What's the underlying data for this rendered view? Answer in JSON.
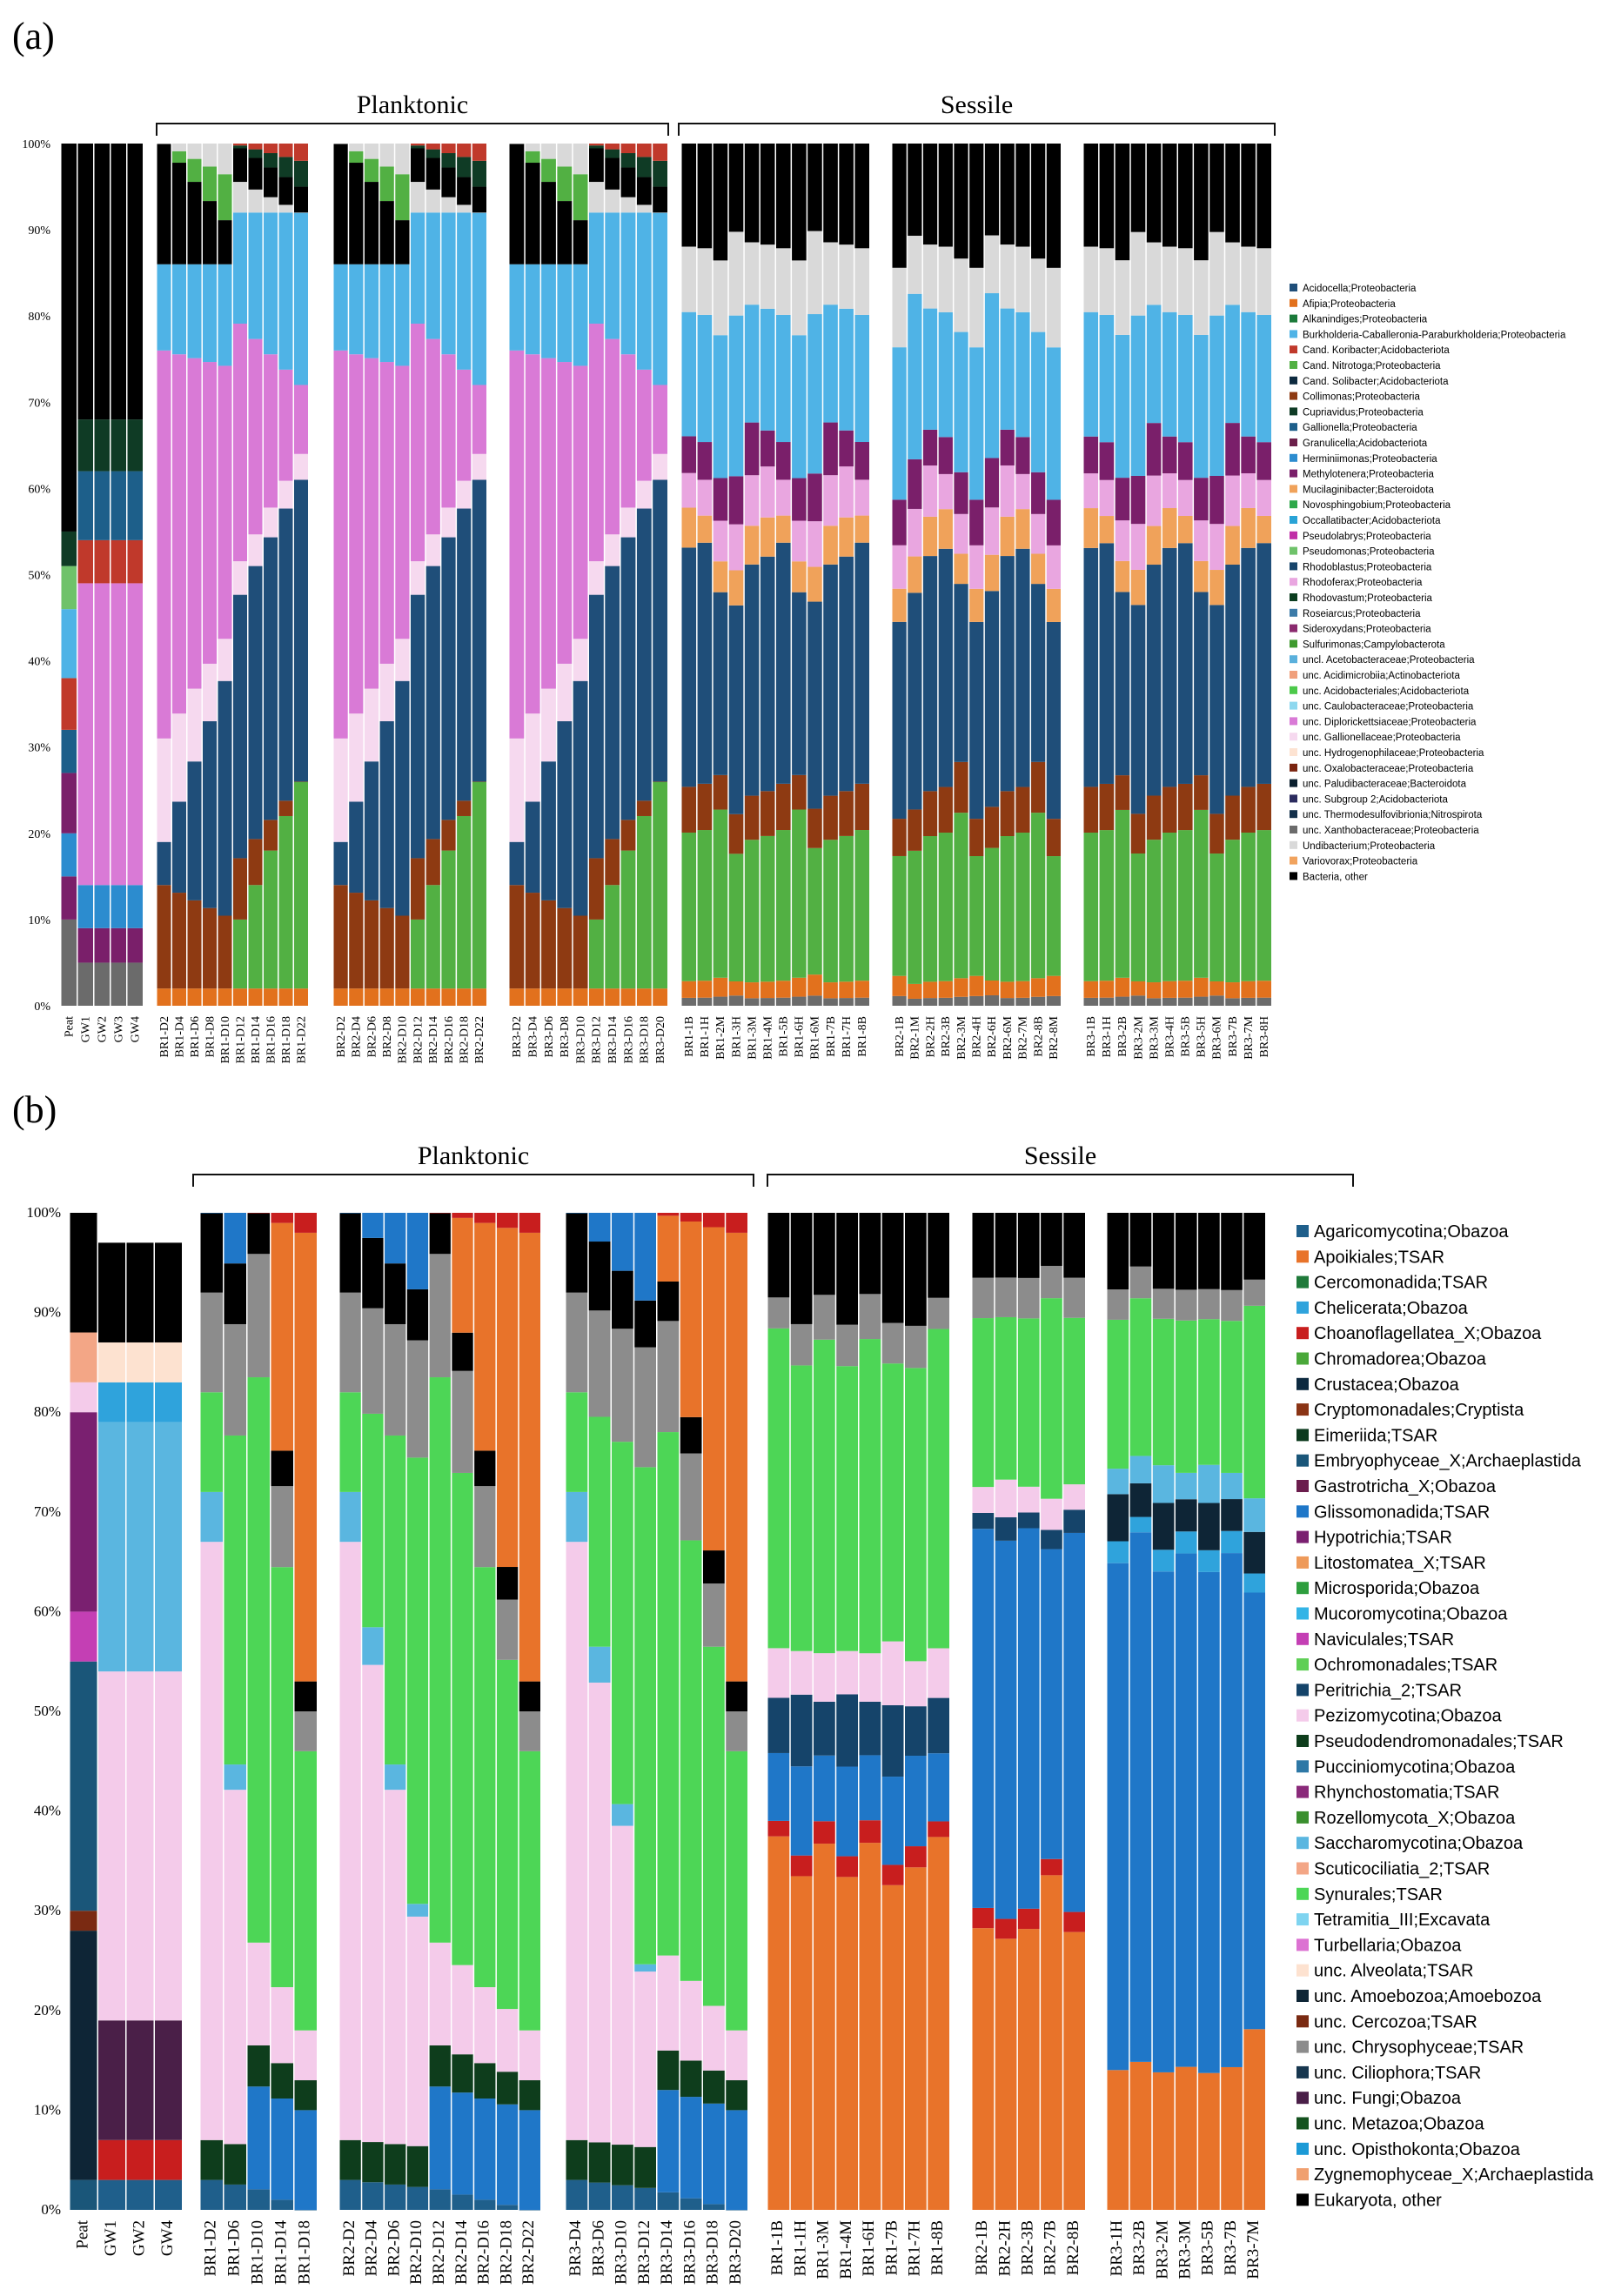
{
  "chart_data": [
    {
      "type": "bar",
      "stacked": true,
      "panel_label": "(a)",
      "group_labels": [
        "Planktonic",
        "Sessile"
      ],
      "ylim": [
        0,
        100
      ],
      "y_ticks": [
        "0%",
        "10%",
        "20%",
        "30%",
        "40%",
        "50%",
        "60%",
        "70%",
        "80%",
        "90%",
        "100%"
      ],
      "groups": [
        [
          "Peat",
          "GW1",
          "GW2",
          "GW3",
          "GW4"
        ],
        [
          "BR1-D2",
          "BR1-D4",
          "BR1-D6",
          "BR1-D8",
          "BR1-D10",
          "BR1-D12",
          "BR1-D14",
          "BR1-D16",
          "BR1-D18",
          "BR1-D22"
        ],
        [
          "BR2-D2",
          "BR2-D4",
          "BR2-D6",
          "BR2-D8",
          "BR2-D10",
          "BR2-D12",
          "BR2-D14",
          "BR2-D16",
          "BR2-D18",
          "BR2-D22"
        ],
        [
          "BR3-D2",
          "BR3-D4",
          "BR3-D6",
          "BR3-D8",
          "BR3-D10",
          "BR3-D12",
          "BR3-D14",
          "BR3-D16",
          "BR3-D18",
          "BR3-D20"
        ],
        [
          "BR1-1B",
          "BR1-1H",
          "BR1-2M",
          "BR1-3H",
          "BR1-3M",
          "BR1-4M",
          "BR1-5B",
          "BR1-6H",
          "BR1-6M",
          "BR1-7B",
          "BR1-7H",
          "BR1-8B"
        ],
        [
          "BR2-1B",
          "BR2-1M",
          "BR2-2H",
          "BR2-3B",
          "BR2-3M",
          "BR2-4H",
          "BR2-6H",
          "BR2-6M",
          "BR2-7M",
          "BR2-8B",
          "BR2-8M"
        ],
        [
          "BR3-1B",
          "BR3-1H",
          "BR3-2B",
          "BR3-2M",
          "BR3-3M",
          "BR3-4H",
          "BR3-5B",
          "BR3-5H",
          "BR3-6M",
          "BR3-7B",
          "BR3-7M",
          "BR3-8H"
        ]
      ],
      "legend": [
        {
          "name": "Acidocella;Proteobacteria",
          "color": "#1f4e79"
        },
        {
          "name": "Afipia;Proteobacteria",
          "color": "#e2711d"
        },
        {
          "name": "Alkanindiges;Proteobacteria",
          "color": "#1b7a3a"
        },
        {
          "name": "Burkholderia-Caballeronia-Paraburkholderia;Proteobacteria",
          "color": "#4fb3e6"
        },
        {
          "name": "Cand. Koribacter;Acidobacteriota",
          "color": "#c0392b"
        },
        {
          "name": "Cand. Nitrotoga;Proteobacteria",
          "color": "#52b043"
        },
        {
          "name": "Cand. Solibacter;Acidobacteriota",
          "color": "#0d2a3f"
        },
        {
          "name": "Collimonas;Proteobacteria",
          "color": "#8e3a12"
        },
        {
          "name": "Cupriavidus;Proteobacteria",
          "color": "#0f3b25"
        },
        {
          "name": "Gallionella;Proteobacteria",
          "color": "#1d5f8a"
        },
        {
          "name": "Granulicella;Acidobacteriota",
          "color": "#6b1f4a"
        },
        {
          "name": "Herminiimonas;Proteobacteria",
          "color": "#2c8ccf"
        },
        {
          "name": "Methylotenera;Proteobacteria",
          "color": "#7a1f6a"
        },
        {
          "name": "Mucilaginibacter;Bacteroidota",
          "color": "#f0a25a"
        },
        {
          "name": "Novosphingobium;Proteobacteria",
          "color": "#2ea84a"
        },
        {
          "name": "Occallatibacter;Acidobacteriota",
          "color": "#29a3d6"
        },
        {
          "name": "Pseudolabrys;Proteobacteria",
          "color": "#c02ea6"
        },
        {
          "name": "Pseudomonas;Proteobacteria",
          "color": "#6fc26a"
        },
        {
          "name": "Rhodoblastus;Proteobacteria",
          "color": "#17456b"
        },
        {
          "name": "Rhodoferax;Proteobacteria",
          "color": "#e9a6e0"
        },
        {
          "name": "Rhodovastum;Proteobacteria",
          "color": "#0b3d1f"
        },
        {
          "name": "Roseiarcus;Proteobacteria",
          "color": "#3c7ba8"
        },
        {
          "name": "Sideroxydans;Proteobacteria",
          "color": "#8a2a6e"
        },
        {
          "name": "Sulfurimonas;Campylobacterota",
          "color": "#3e9a2e"
        },
        {
          "name": "uncl. Acetobacteraceae;Proteobacteria",
          "color": "#5ab0dc"
        },
        {
          "name": "unc. Acidimicrobiia;Actinobacteriota",
          "color": "#f0a07c"
        },
        {
          "name": "unc. Acidobacteriales;Acidobacteriota",
          "color": "#4cc94a"
        },
        {
          "name": "unc. Caulobacteraceae;Proteobacteria",
          "color": "#8ed8ef"
        },
        {
          "name": "unc. Diplorickettsiaceae;Proteobacteria",
          "color": "#d97ad6"
        },
        {
          "name": "unc. Gallionellaceae;Proteobacteria",
          "color": "#f6d9ef"
        },
        {
          "name": "unc. Hydrogenophilaceae;Proteobacteria",
          "color": "#fde3d2"
        },
        {
          "name": "unc. Oxalobacteraceae;Proteobacteria",
          "color": "#7a2410"
        },
        {
          "name": "unc. Paludibacteraceae;Bacteroidota",
          "color": "#0a1f2e"
        },
        {
          "name": "unc. Subgroup 2;Acidobacteriota",
          "color": "#2b2b5e"
        },
        {
          "name": "unc. Thermodesulfovibrionia;Nitrospirota",
          "color": "#14304a"
        },
        {
          "name": "unc. Xanthobacteraceae;Proteobacteria",
          "color": "#6b6b6b"
        },
        {
          "name": "Undibacterium;Proteobacteria",
          "color": "#d9d9d9"
        },
        {
          "name": "Variovorax;Proteobacteria",
          "color": "#f1a35e"
        },
        {
          "name": "Bacteria, other",
          "color": "#000000"
        }
      ],
      "sample_profiles": {
        "Peat": [
          [
            "#6b6b6b",
            10
          ],
          [
            "#7a1f6a",
            5
          ],
          [
            "#2c8ccf",
            5
          ],
          [
            "#7a1f6a",
            7
          ],
          [
            "#1d5f8a",
            5
          ],
          [
            "#c0392b",
            6
          ],
          [
            "#4fb3e6",
            8
          ],
          [
            "#6fc26a",
            5
          ],
          [
            "#0f3b25",
            4
          ],
          [
            "#000000",
            45
          ]
        ],
        "GW": [
          [
            "#6b6b6b",
            5
          ],
          [
            "#7a1f6a",
            4
          ],
          [
            "#2c8ccf",
            5
          ],
          [
            "#d97ad6",
            35
          ],
          [
            "#c0392b",
            5
          ],
          [
            "#1d5f8a",
            8
          ],
          [
            "#0f3b25",
            6
          ],
          [
            "#000000",
            32
          ]
        ],
        "PLK_early": [
          [
            "#e2711d",
            2
          ],
          [
            "#8e3a12",
            12
          ],
          [
            "#1f4e79",
            5
          ],
          [
            "#f6d9ef",
            12
          ],
          [
            "#d97ad6",
            45
          ],
          [
            "#4fb3e6",
            10
          ],
          [
            "#000000",
            14
          ]
        ],
        "PLK_mid": [
          [
            "#e2711d",
            2
          ],
          [
            "#52b043",
            6
          ],
          [
            "#8e3a12",
            8
          ],
          [
            "#1f4e79",
            30
          ],
          [
            "#f6d9ef",
            4
          ],
          [
            "#d97ad6",
            30
          ],
          [
            "#4fb3e6",
            12
          ],
          [
            "#d9d9d9",
            4
          ],
          [
            "#000000",
            4
          ]
        ],
        "PLK_late": [
          [
            "#e2711d",
            2
          ],
          [
            "#52b043",
            24
          ],
          [
            "#0f3b25",
            3
          ],
          [
            "#1f4e79",
            35
          ],
          [
            "#f6d9ef",
            3
          ],
          [
            "#d97ad6",
            8
          ],
          [
            "#4fb3e6",
            20
          ],
          [
            "#c0392b",
            2
          ],
          [
            "#000000",
            3
          ]
        ],
        "SES": [
          [
            "#6b6b6b",
            1
          ],
          [
            "#e2711d",
            2
          ],
          [
            "#52b043",
            17
          ],
          [
            "#8e3a12",
            5
          ],
          [
            "#1f4e79",
            25
          ],
          [
            "#f0a25a",
            4
          ],
          [
            "#e9a6e0",
            5
          ],
          [
            "#7a1f6a",
            5
          ],
          [
            "#4fb3e6",
            16
          ],
          [
            "#d9d9d9",
            8
          ],
          [
            "#000000",
            12
          ]
        ]
      }
    },
    {
      "type": "bar",
      "stacked": true,
      "panel_label": "(b)",
      "group_labels": [
        "Planktonic",
        "Sessile"
      ],
      "ylim": [
        0,
        100
      ],
      "y_ticks": [
        "0%",
        "10%",
        "20%",
        "30%",
        "40%",
        "50%",
        "60%",
        "70%",
        "80%",
        "90%",
        "100%"
      ],
      "groups": [
        [
          "Peat",
          "GW1",
          "GW2",
          "GW4"
        ],
        [
          "BR1-D2",
          "BR1-D6",
          "BR1-D10",
          "BR1-D14",
          "BR1-D18"
        ],
        [
          "BR2-D2",
          "BR2-D4",
          "BR2-D6",
          "BR2-D10",
          "BR2-D12",
          "BR2-D14",
          "BR2-D16",
          "BR2-D18",
          "BR2-D22"
        ],
        [
          "BR3-D4",
          "BR3-D6",
          "BR3-D10",
          "BR3-D12",
          "BR3-D14",
          "BR3-D16",
          "BR3-D18",
          "BR3-D20"
        ],
        [
          "BR1-1B",
          "BR1-1H",
          "BR1-3M",
          "BR1-4M",
          "BR1-6H",
          "BR1-7B",
          "BR1-7H",
          "BR1-8B"
        ],
        [
          "BR2-1B",
          "BR2-2H",
          "BR2-3B",
          "BR2-7B",
          "BR2-8B"
        ],
        [
          "BR3-1H",
          "BR3-2B",
          "BR3-2M",
          "BR3-3M",
          "BR3-5B",
          "BR3-7B",
          "BR3-7M"
        ]
      ],
      "legend": [
        {
          "name": "Agaricomycotina;Obazoa",
          "color": "#1f5f8b"
        },
        {
          "name": "Apoikiales;TSAR",
          "color": "#e8732a"
        },
        {
          "name": "Cercomonadida;TSAR",
          "color": "#1f7a3a"
        },
        {
          "name": "Chelicerata;Obazoa",
          "color": "#2fa3dc"
        },
        {
          "name": "Choanoflagellatea_X;Obazoa",
          "color": "#c81e1e"
        },
        {
          "name": "Chromadorea;Obazoa",
          "color": "#4aa83a"
        },
        {
          "name": "Crustacea;Obazoa",
          "color": "#0d2a40"
        },
        {
          "name": "Cryptomonadales;Cryptista",
          "color": "#8a3415"
        },
        {
          "name": "Eimeriida;TSAR",
          "color": "#0c3a1e"
        },
        {
          "name": "Embryophyceae_X;Archaeplastida",
          "color": "#1a5679"
        },
        {
          "name": "Gastrotricha_X;Obazoa",
          "color": "#6b1d4d"
        },
        {
          "name": "Glissomonadida;TSAR",
          "color": "#1f77c8"
        },
        {
          "name": "Hypotrichia;TSAR",
          "color": "#7a2070"
        },
        {
          "name": "Litostomatea_X;TSAR",
          "color": "#ee9a5a"
        },
        {
          "name": "Microsporida;Obazoa",
          "color": "#2e9e3e"
        },
        {
          "name": "Mucoromycotina;Obazoa",
          "color": "#33b4e6"
        },
        {
          "name": "Naviculales;TSAR",
          "color": "#c43fb4"
        },
        {
          "name": "Ochromonadales;TSAR",
          "color": "#5fcf55"
        },
        {
          "name": "Peritrichia_2;TSAR",
          "color": "#15446a"
        },
        {
          "name": "Pezizomycotina;Obazoa",
          "color": "#f4cbea"
        },
        {
          "name": "Pseudodendromonadales;TSAR",
          "color": "#0e3d1c"
        },
        {
          "name": "Pucciniomycotina;Obazoa",
          "color": "#2e78a6"
        },
        {
          "name": "Rhynchostomatia;TSAR",
          "color": "#8a2a7a"
        },
        {
          "name": "Rozellomycota_X;Obazoa",
          "color": "#3a8f2e"
        },
        {
          "name": "Saccharomycotina;Obazoa",
          "color": "#5ab6e0"
        },
        {
          "name": "Scuticociliatia_2;TSAR",
          "color": "#f3a686"
        },
        {
          "name": "Synurales;TSAR",
          "color": "#4dd656"
        },
        {
          "name": "Tetramitia_III;Excavata",
          "color": "#7fd4f0"
        },
        {
          "name": "Turbellaria;Obazoa",
          "color": "#dc72d2"
        },
        {
          "name": "unc. Alveolata;TSAR",
          "color": "#fde2d0"
        },
        {
          "name": "unc. Amoebozoa;Amoebozoa",
          "color": "#0e2536"
        },
        {
          "name": "unc. Cercozoa;TSAR",
          "color": "#7a2a12"
        },
        {
          "name": "unc. Chrysophyceae;TSAR",
          "color": "#8c8c8c"
        },
        {
          "name": "unc. Ciliophora;TSAR",
          "color": "#17374f"
        },
        {
          "name": "unc. Fungi;Obazoa",
          "color": "#4a1f48"
        },
        {
          "name": "unc. Metazoa;Obazoa",
          "color": "#14521f"
        },
        {
          "name": "unc. Opisthokonta;Obazoa",
          "color": "#1c9ad6"
        },
        {
          "name": "Zygnemophyceae_X;Archaeplastida",
          "color": "#f0a070"
        },
        {
          "name": "Eukaryota, other",
          "color": "#000000"
        }
      ]
    }
  ]
}
